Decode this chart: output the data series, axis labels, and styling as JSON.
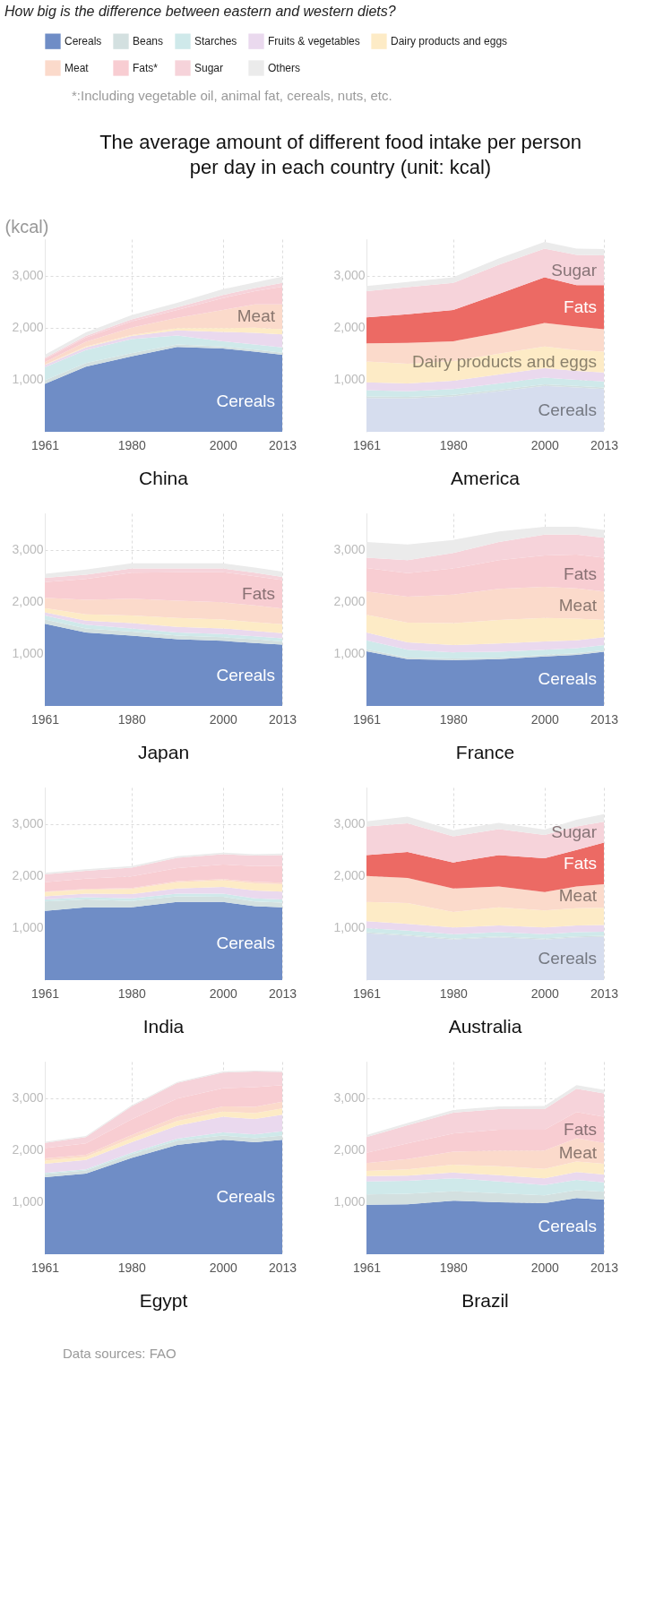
{
  "chart_data": [
    {
      "type": "other",
      "title": "How big is the difference between eastern and western diets?",
      "subtitle": "The average amount of different food intake per person per day in each country (unit: kcal)",
      "annotations": [
        "*:Including vegetable oil, animal fat, cereals, nuts, etc."
      ]
    },
    {
      "type": "area",
      "title": "China",
      "stacked": true,
      "legend": "top",
      "ylabel": "(kcal)",
      "grid": true,
      "x": [
        1961,
        1970,
        1980,
        1990,
        2000,
        2007,
        2013
      ],
      "xlim": [
        1961,
        2013
      ],
      "xticks": [
        1961,
        1980,
        2000,
        2013
      ],
      "ylim": [
        0,
        3700
      ],
      "yticks": [
        {
          "value": 1000,
          "label": "1,000"
        },
        {
          "value": 2000,
          "label": "2,000"
        },
        {
          "value": 3000,
          "label": "3,000"
        }
      ],
      "series": [
        {
          "name": "Cereals",
          "color": "#6f8dc6",
          "values": [
            920,
            1250,
            1450,
            1630,
            1600,
            1540,
            1480
          ]
        },
        {
          "name": "Beans",
          "color": "#d3e0e0",
          "values": [
            70,
            70,
            60,
            50,
            40,
            40,
            40
          ]
        },
        {
          "name": "Starches",
          "color": "#cfe9ea",
          "values": [
            250,
            250,
            270,
            170,
            100,
            100,
            100
          ]
        },
        {
          "name": "Fruits & vegetables",
          "color": "#ead9ee",
          "values": [
            40,
            50,
            60,
            100,
            180,
            220,
            250
          ]
        },
        {
          "name": "Dairy products and eggs",
          "color": "#fdebc6",
          "values": [
            10,
            20,
            20,
            40,
            70,
            100,
            100
          ]
        },
        {
          "name": "Meat",
          "color": "#fbdacb",
          "values": [
            50,
            90,
            140,
            200,
            350,
            450,
            480
          ]
        },
        {
          "name": "Fats*",
          "color": "#f8cdd2",
          "values": [
            60,
            80,
            120,
            150,
            230,
            250,
            340
          ]
        },
        {
          "name": "Sugar",
          "color": "#f6d3da",
          "values": [
            20,
            30,
            40,
            50,
            60,
            60,
            70
          ]
        },
        {
          "name": "Others",
          "color": "#ebebeb",
          "values": [
            60,
            70,
            80,
            90,
            110,
            110,
            120
          ]
        }
      ],
      "annotations": [
        "Meat",
        "Cereals"
      ]
    },
    {
      "type": "area",
      "title": "America",
      "stacked": true,
      "grid": true,
      "x": [
        1961,
        1970,
        1980,
        1990,
        2000,
        2007,
        2013
      ],
      "xlim": [
        1961,
        2013
      ],
      "xticks": [
        1961,
        1980,
        2000,
        2013
      ],
      "ylim": [
        0,
        3700
      ],
      "yticks": [
        {
          "value": 1000,
          "label": "1,000"
        },
        {
          "value": 2000,
          "label": "2,000"
        },
        {
          "value": 3000,
          "label": "3,000"
        }
      ],
      "series": [
        {
          "name": "Cereals",
          "color": "#d6ddee",
          "values": [
            650,
            640,
            680,
            780,
            880,
            850,
            820
          ]
        },
        {
          "color": "#d3e0e0",
          "values": [
            30,
            30,
            30,
            30,
            30,
            30,
            30
          ]
        },
        {
          "color": "#cfe9ea",
          "values": [
            120,
            110,
            110,
            120,
            130,
            120,
            120
          ]
        },
        {
          "color": "#ead9ee",
          "values": [
            150,
            150,
            160,
            170,
            180,
            170,
            170
          ]
        },
        {
          "name": "Dairy products and eggs",
          "color": "#fdebc6",
          "values": [
            400,
            380,
            380,
            400,
            420,
            400,
            400
          ]
        },
        {
          "color": "#fbdacb",
          "values": [
            350,
            400,
            380,
            400,
            450,
            450,
            430
          ]
        },
        {
          "name": "Fats",
          "color": "#ec6a64",
          "values": [
            500,
            550,
            600,
            750,
            880,
            800,
            850
          ]
        },
        {
          "name": "Sugar",
          "color": "#f6d3da",
          "values": [
            500,
            520,
            520,
            560,
            550,
            580,
            570
          ]
        },
        {
          "color": "#ebebeb",
          "values": [
            100,
            100,
            110,
            120,
            130,
            120,
            120
          ]
        }
      ]
    },
    {
      "type": "area",
      "title": "Japan",
      "stacked": true,
      "grid": true,
      "x": [
        1961,
        1970,
        1980,
        1990,
        2000,
        2007,
        2013
      ],
      "xlim": [
        1961,
        2013
      ],
      "xticks": [
        1961,
        1980,
        2000,
        2013
      ],
      "ylim": [
        0,
        3700
      ],
      "yticks": [
        {
          "value": 1000,
          "label": "1,000"
        },
        {
          "value": 2000,
          "label": "2,000"
        },
        {
          "value": 3000,
          "label": "3,000"
        }
      ],
      "series": [
        {
          "name": "Cereals",
          "color": "#6f8dc6",
          "values": [
            1580,
            1410,
            1350,
            1280,
            1250,
            1210,
            1180
          ]
        },
        {
          "color": "#d3e0e0",
          "values": [
            80,
            80,
            80,
            70,
            70,
            70,
            60
          ]
        },
        {
          "color": "#cfe9ea",
          "values": [
            80,
            70,
            60,
            60,
            60,
            60,
            60
          ]
        },
        {
          "color": "#ead9ee",
          "values": [
            60,
            80,
            100,
            110,
            110,
            100,
            100
          ]
        },
        {
          "color": "#fdebc6",
          "values": [
            80,
            120,
            150,
            170,
            170,
            170,
            170
          ]
        },
        {
          "color": "#fbdacb",
          "values": [
            200,
            280,
            320,
            330,
            330,
            320,
            300
          ]
        },
        {
          "name": "Fats",
          "color": "#f8cdd2",
          "values": [
            300,
            400,
            500,
            550,
            580,
            560,
            550
          ]
        },
        {
          "color": "#f6d3da",
          "values": [
            80,
            80,
            80,
            70,
            70,
            70,
            60
          ]
        },
        {
          "color": "#ebebeb",
          "values": [
            80,
            100,
            100,
            100,
            100,
            100,
            100
          ]
        }
      ]
    },
    {
      "type": "area",
      "title": "France",
      "stacked": true,
      "grid": true,
      "x": [
        1961,
        1970,
        1980,
        1990,
        2000,
        2007,
        2013
      ],
      "xlim": [
        1961,
        2013
      ],
      "xticks": [
        1961,
        1980,
        2000,
        2013
      ],
      "ylim": [
        0,
        3700
      ],
      "yticks": [
        {
          "value": 1000,
          "label": "1,000"
        },
        {
          "value": 2000,
          "label": "2,000"
        },
        {
          "value": 3000,
          "label": "3,000"
        }
      ],
      "series": [
        {
          "name": "Cereals",
          "color": "#6f8dc6",
          "values": [
            1050,
            900,
            880,
            900,
            950,
            980,
            1040
          ]
        },
        {
          "color": "#d3e0e0",
          "values": [
            40,
            30,
            30,
            30,
            30,
            30,
            30
          ]
        },
        {
          "color": "#cfe9ea",
          "values": [
            170,
            150,
            120,
            110,
            100,
            100,
            100
          ]
        },
        {
          "color": "#ead9ee",
          "values": [
            150,
            140,
            140,
            160,
            160,
            150,
            150
          ]
        },
        {
          "color": "#fdebc6",
          "values": [
            340,
            380,
            420,
            450,
            450,
            420,
            330
          ]
        },
        {
          "name": "Meat",
          "color": "#fbdacb",
          "values": [
            450,
            500,
            550,
            600,
            600,
            580,
            550
          ]
        },
        {
          "name": "Fats",
          "color": "#f8cdd2",
          "values": [
            450,
            450,
            500,
            550,
            600,
            650,
            650
          ]
        },
        {
          "color": "#f6d3da",
          "values": [
            200,
            250,
            300,
            350,
            400,
            380,
            380
          ]
        },
        {
          "color": "#ebebeb",
          "values": [
            300,
            300,
            250,
            200,
            150,
            150,
            150
          ]
        }
      ]
    },
    {
      "type": "area",
      "title": "India",
      "stacked": true,
      "grid": true,
      "x": [
        1961,
        1970,
        1980,
        1990,
        2000,
        2007,
        2013
      ],
      "xlim": [
        1961,
        2013
      ],
      "xticks": [
        1961,
        1980,
        2000,
        2013
      ],
      "ylim": [
        0,
        3700
      ],
      "yticks": [
        {
          "value": 1000,
          "label": "1,000"
        },
        {
          "value": 2000,
          "label": "2,000"
        },
        {
          "value": 3000,
          "label": "3,000"
        }
      ],
      "series": [
        {
          "name": "Cereals",
          "color": "#6f8dc6",
          "values": [
            1330,
            1400,
            1400,
            1500,
            1500,
            1420,
            1400
          ]
        },
        {
          "color": "#d3e0e0",
          "values": [
            180,
            150,
            120,
            110,
            100,
            90,
            90
          ]
        },
        {
          "color": "#cfe9ea",
          "values": [
            40,
            40,
            50,
            50,
            60,
            60,
            60
          ]
        },
        {
          "color": "#ead9ee",
          "values": [
            60,
            70,
            80,
            100,
            130,
            150,
            150
          ]
        },
        {
          "color": "#fdebc6",
          "values": [
            80,
            80,
            100,
            120,
            130,
            140,
            140
          ]
        },
        {
          "color": "#fbdacb",
          "values": [
            10,
            10,
            20,
            20,
            20,
            30,
            30
          ]
        },
        {
          "color": "#f8cdd2",
          "values": [
            180,
            200,
            220,
            250,
            280,
            300,
            330
          ]
        },
        {
          "color": "#f6d3da",
          "values": [
            150,
            150,
            170,
            200,
            200,
            200,
            200
          ]
        },
        {
          "color": "#ebebeb",
          "values": [
            30,
            30,
            30,
            30,
            30,
            30,
            30
          ]
        }
      ]
    },
    {
      "type": "area",
      "title": "Australia",
      "stacked": true,
      "grid": true,
      "x": [
        1961,
        1970,
        1980,
        1990,
        2000,
        2007,
        2013
      ],
      "xlim": [
        1961,
        2013
      ],
      "xticks": [
        1961,
        1980,
        2000,
        2013
      ],
      "ylim": [
        0,
        3700
      ],
      "yticks": [
        {
          "value": 1000,
          "label": "1,000"
        },
        {
          "value": 2000,
          "label": "2,000"
        },
        {
          "value": 3000,
          "label": "3,000"
        }
      ],
      "series": [
        {
          "name": "Cereals",
          "color": "#d6ddee",
          "values": [
            900,
            850,
            780,
            820,
            780,
            820,
            830
          ]
        },
        {
          "color": "#d3e0e0",
          "values": [
            20,
            20,
            20,
            20,
            20,
            20,
            20
          ]
        },
        {
          "color": "#cfe9ea",
          "values": [
            80,
            80,
            80,
            80,
            80,
            80,
            80
          ]
        },
        {
          "color": "#ead9ee",
          "values": [
            130,
            130,
            130,
            130,
            130,
            130,
            130
          ]
        },
        {
          "color": "#fdebc6",
          "values": [
            370,
            400,
            300,
            350,
            330,
            330,
            330
          ]
        },
        {
          "name": "Meat",
          "color": "#fbdacb",
          "values": [
            500,
            480,
            450,
            400,
            350,
            420,
            450
          ]
        },
        {
          "name": "Fats",
          "color": "#ec6a64",
          "values": [
            400,
            500,
            500,
            600,
            650,
            700,
            800
          ]
        },
        {
          "name": "Sugar",
          "color": "#f6d3da",
          "values": [
            550,
            550,
            500,
            500,
            450,
            450,
            400
          ]
        },
        {
          "color": "#ebebeb",
          "values": [
            100,
            130,
            120,
            120,
            100,
            130,
            150
          ]
        }
      ]
    },
    {
      "type": "area",
      "title": "Egypt",
      "stacked": true,
      "grid": true,
      "x": [
        1961,
        1970,
        1980,
        1990,
        2000,
        2007,
        2013
      ],
      "xlim": [
        1961,
        2013
      ],
      "xticks": [
        1961,
        1980,
        2000,
        2013
      ],
      "ylim": [
        0,
        3700
      ],
      "yticks": [
        {
          "value": 1000,
          "label": "1,000"
        },
        {
          "value": 2000,
          "label": "2,000"
        },
        {
          "value": 3000,
          "label": "3,000"
        }
      ],
      "series": [
        {
          "name": "Cereals",
          "color": "#6f8dc6",
          "values": [
            1480,
            1550,
            1850,
            2100,
            2200,
            2150,
            2200
          ]
        },
        {
          "color": "#d3e0e0",
          "values": [
            60,
            60,
            70,
            80,
            80,
            80,
            80
          ]
        },
        {
          "color": "#cfe9ea",
          "values": [
            20,
            20,
            30,
            40,
            60,
            70,
            80
          ]
        },
        {
          "color": "#ead9ee",
          "values": [
            180,
            180,
            200,
            250,
            300,
            300,
            320
          ]
        },
        {
          "color": "#fdebc6",
          "values": [
            60,
            60,
            80,
            90,
            100,
            110,
            120
          ]
        },
        {
          "color": "#fbdacb",
          "values": [
            40,
            40,
            60,
            80,
            100,
            120,
            130
          ]
        },
        {
          "color": "#f8cdd2",
          "values": [
            200,
            220,
            300,
            350,
            350,
            380,
            320
          ]
        },
        {
          "color": "#f6d3da",
          "values": [
            100,
            120,
            250,
            300,
            300,
            300,
            250
          ]
        },
        {
          "color": "#ebebeb",
          "values": [
            20,
            20,
            20,
            20,
            20,
            20,
            20
          ]
        }
      ]
    },
    {
      "type": "area",
      "title": "Brazil",
      "stacked": true,
      "grid": true,
      "x": [
        1961,
        1970,
        1980,
        1990,
        2000,
        2007,
        2013
      ],
      "xlim": [
        1961,
        2013
      ],
      "xticks": [
        1961,
        1980,
        2000,
        2013
      ],
      "ylim": [
        0,
        3700
      ],
      "yticks": [
        {
          "value": 1000,
          "label": "1,000"
        },
        {
          "value": 2000,
          "label": "2,000"
        },
        {
          "value": 3000,
          "label": "3,000"
        }
      ],
      "series": [
        {
          "name": "Cereals",
          "color": "#6f8dc6",
          "values": [
            950,
            960,
            1030,
            1000,
            980,
            1080,
            1050
          ]
        },
        {
          "color": "#d3e0e0",
          "values": [
            200,
            200,
            180,
            170,
            150,
            150,
            150
          ]
        },
        {
          "color": "#cfe9ea",
          "values": [
            250,
            250,
            250,
            230,
            200,
            200,
            180
          ]
        },
        {
          "color": "#ead9ee",
          "values": [
            100,
            100,
            110,
            120,
            130,
            150,
            150
          ]
        },
        {
          "color": "#fdebc6",
          "values": [
            100,
            120,
            150,
            170,
            180,
            200,
            210
          ]
        },
        {
          "name": "Meat",
          "color": "#fbdacb",
          "values": [
            150,
            200,
            250,
            300,
            350,
            450,
            400
          ]
        },
        {
          "name": "Fats",
          "color": "#f8cdd2",
          "values": [
            200,
            300,
            350,
            400,
            400,
            500,
            500
          ]
        },
        {
          "color": "#f6d3da",
          "values": [
            300,
            350,
            400,
            400,
            400,
            450,
            450
          ]
        },
        {
          "color": "#ebebeb",
          "values": [
            40,
            40,
            50,
            50,
            60,
            70,
            70
          ]
        }
      ]
    },
    {
      "type": "other",
      "annotations": [
        "Data sources: FAO"
      ]
    }
  ]
}
